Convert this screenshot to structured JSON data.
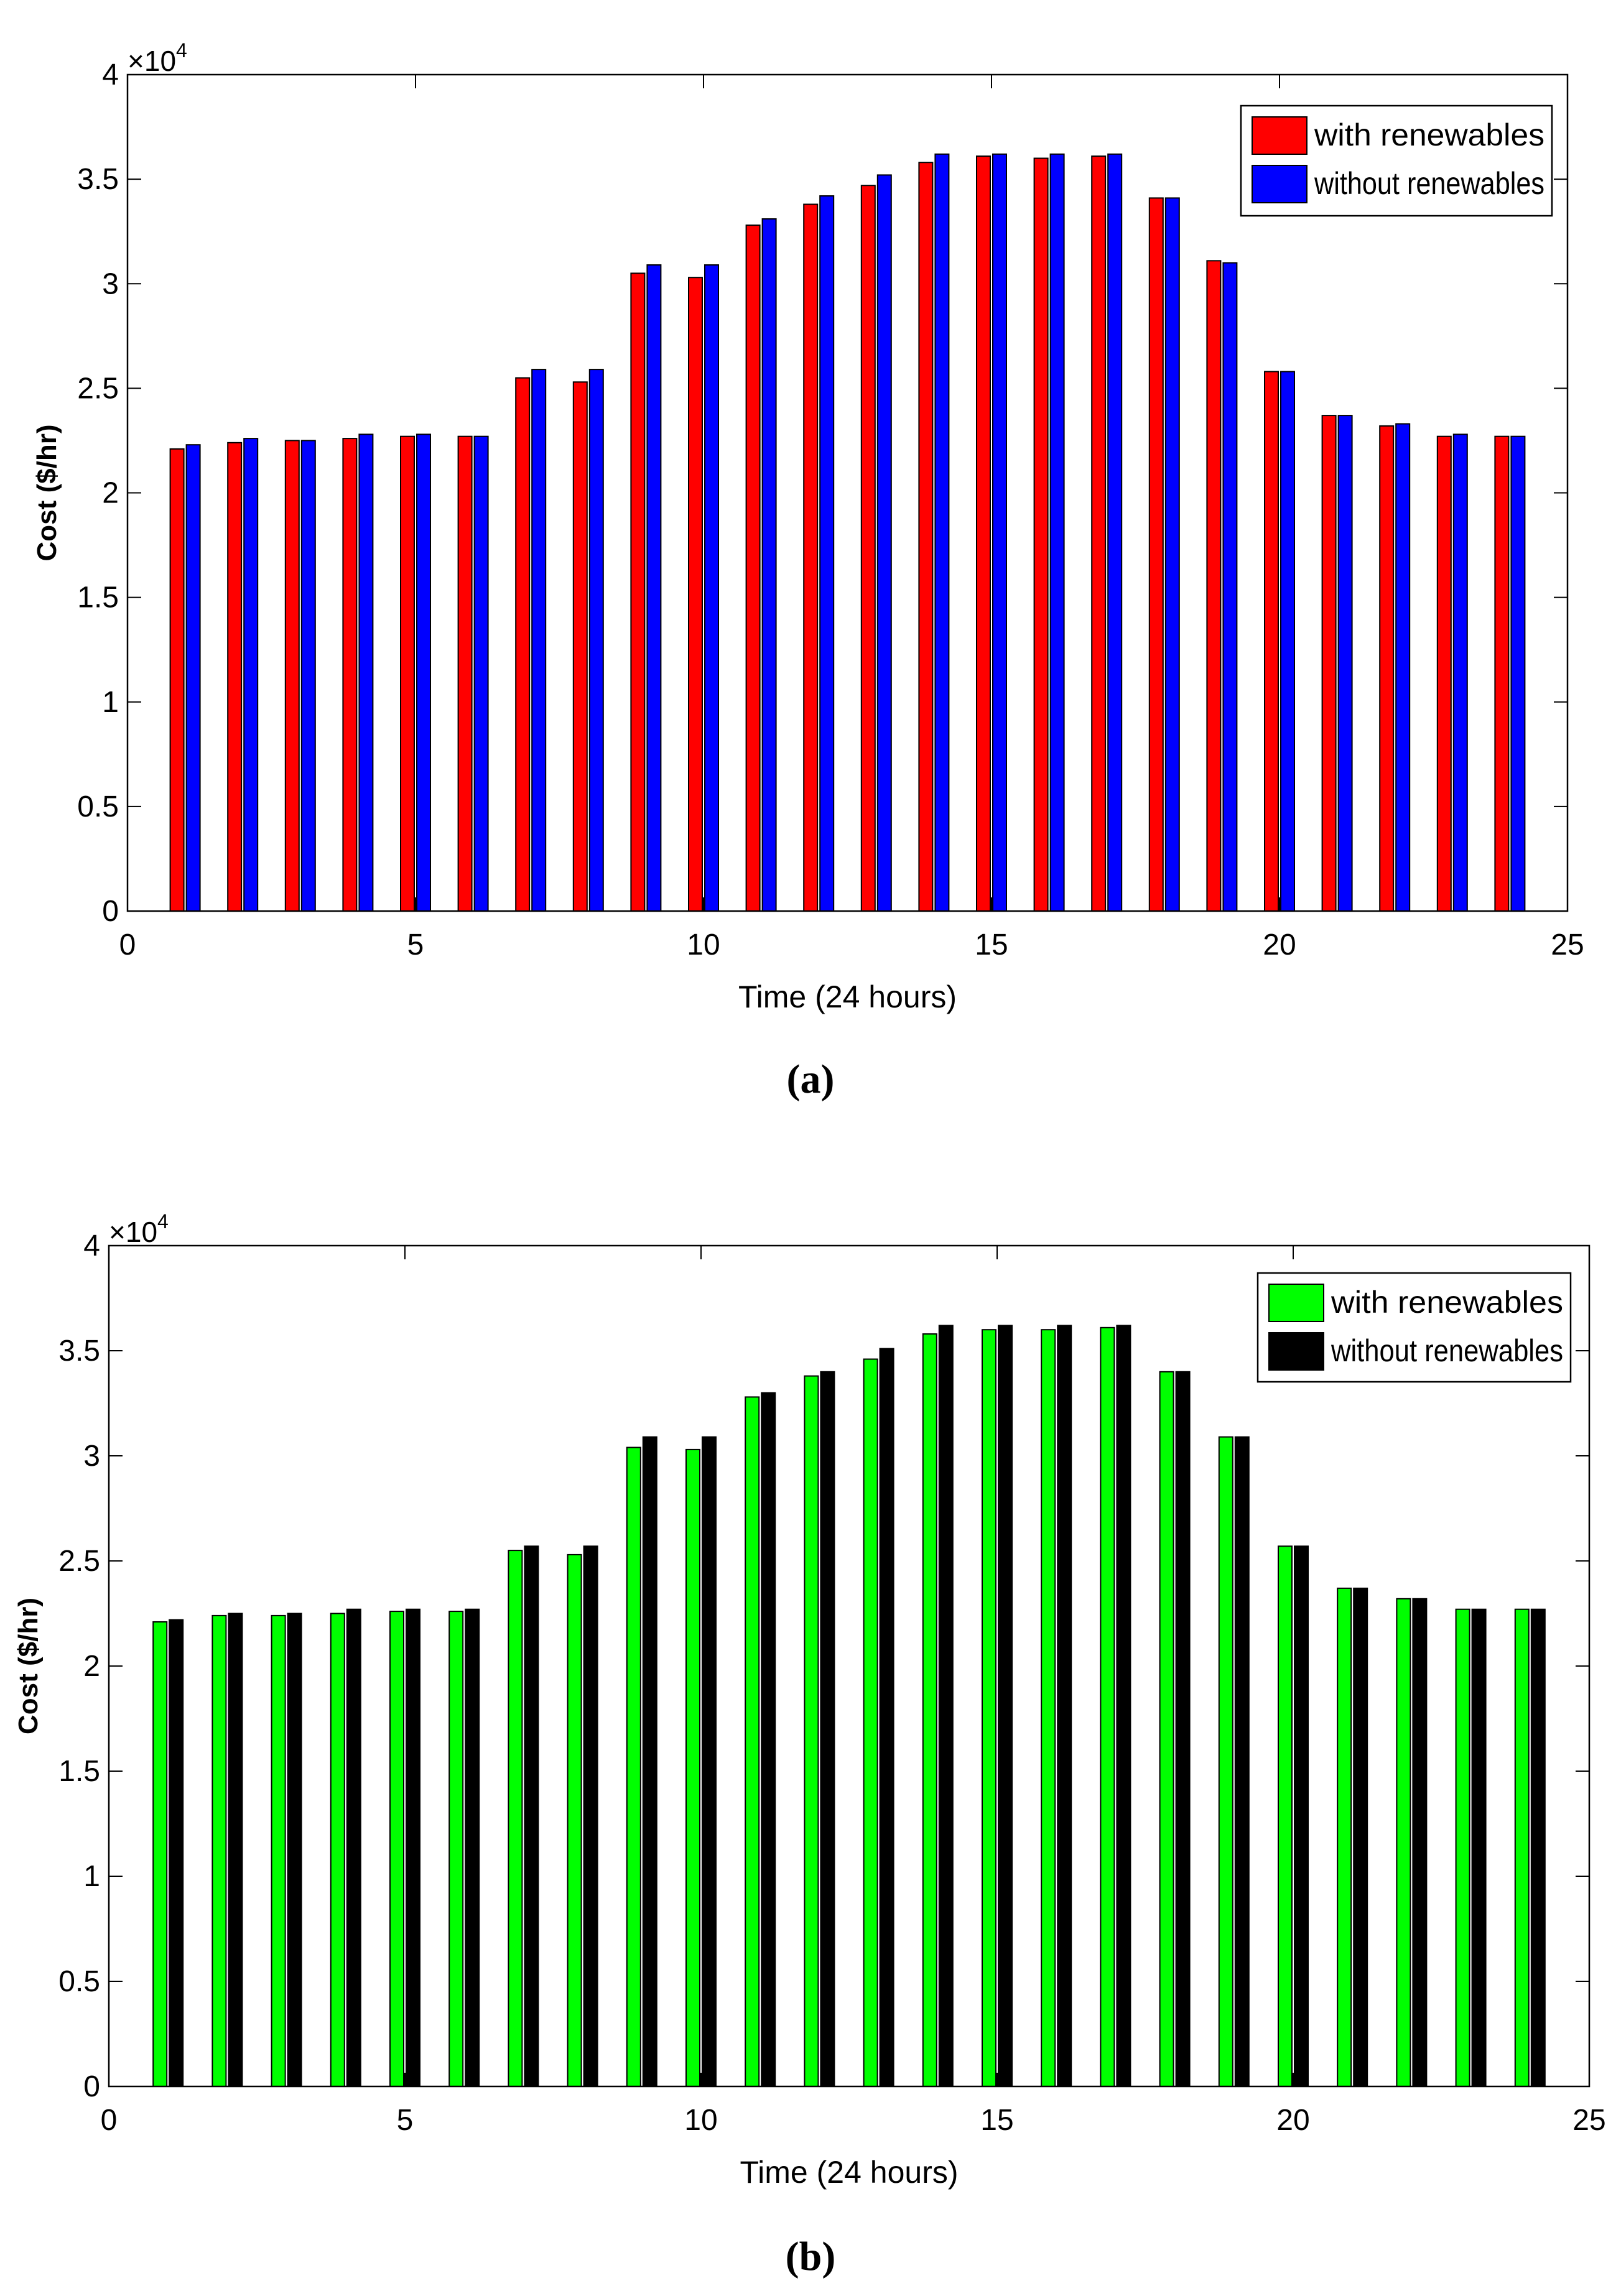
{
  "figure": {
    "panels": [
      "a",
      "b"
    ]
  },
  "chart_data": [
    {
      "id": "a",
      "type": "bar",
      "panel_label": "(a)",
      "xlabel": "Time (24 hours)",
      "ylabel": "Cost ($/hr)",
      "y_multiplier_label": "×10",
      "y_multiplier_exponent": "4",
      "xlim": [
        0,
        25
      ],
      "ylim": [
        0,
        4
      ],
      "xticks": [
        0,
        5,
        10,
        15,
        20,
        25
      ],
      "yticks": [
        0,
        0.5,
        1,
        1.5,
        2,
        2.5,
        3,
        3.5,
        4
      ],
      "legend_position": "top-right",
      "x": [
        1,
        2,
        3,
        4,
        5,
        6,
        7,
        8,
        9,
        10,
        11,
        12,
        13,
        14,
        15,
        16,
        17,
        18,
        19,
        20,
        21,
        22,
        23,
        24
      ],
      "series": [
        {
          "name": "with renewables",
          "color": "#ff0000",
          "values": [
            2.21,
            2.24,
            2.25,
            2.26,
            2.27,
            2.27,
            2.55,
            2.53,
            3.05,
            3.03,
            3.28,
            3.38,
            3.47,
            3.58,
            3.61,
            3.6,
            3.61,
            3.41,
            3.11,
            2.58,
            2.37,
            2.32,
            2.27,
            2.27
          ]
        },
        {
          "name": "without renewables",
          "color": "#0000ff",
          "values": [
            2.23,
            2.26,
            2.25,
            2.28,
            2.28,
            2.27,
            2.59,
            2.59,
            3.09,
            3.09,
            3.31,
            3.42,
            3.52,
            3.62,
            3.62,
            3.62,
            3.62,
            3.41,
            3.1,
            2.58,
            2.37,
            2.33,
            2.28,
            2.27
          ]
        }
      ]
    },
    {
      "id": "b",
      "type": "bar",
      "panel_label": "(b)",
      "xlabel": "Time (24 hours)",
      "ylabel": "Cost ($/hr)",
      "y_multiplier_label": "×10",
      "y_multiplier_exponent": "4",
      "xlim": [
        0,
        25
      ],
      "ylim": [
        0,
        4
      ],
      "xticks": [
        0,
        5,
        10,
        15,
        20,
        25
      ],
      "yticks": [
        0,
        0.5,
        1,
        1.5,
        2,
        2.5,
        3,
        3.5,
        4
      ],
      "legend_position": "top-right",
      "x": [
        1,
        2,
        3,
        4,
        5,
        6,
        7,
        8,
        9,
        10,
        11,
        12,
        13,
        14,
        15,
        16,
        17,
        18,
        19,
        20,
        21,
        22,
        23,
        24
      ],
      "series": [
        {
          "name": "with renewables",
          "color": "#00ff00",
          "values": [
            2.21,
            2.24,
            2.24,
            2.25,
            2.26,
            2.26,
            2.55,
            2.53,
            3.04,
            3.03,
            3.28,
            3.38,
            3.46,
            3.58,
            3.6,
            3.6,
            3.61,
            3.4,
            3.09,
            2.57,
            2.37,
            2.32,
            2.27,
            2.27
          ]
        },
        {
          "name": "without renewables",
          "color": "#000000",
          "values": [
            2.22,
            2.25,
            2.25,
            2.27,
            2.27,
            2.27,
            2.57,
            2.57,
            3.09,
            3.09,
            3.3,
            3.4,
            3.51,
            3.62,
            3.62,
            3.62,
            3.62,
            3.4,
            3.09,
            2.57,
            2.37,
            2.32,
            2.27,
            2.27
          ]
        }
      ]
    }
  ]
}
